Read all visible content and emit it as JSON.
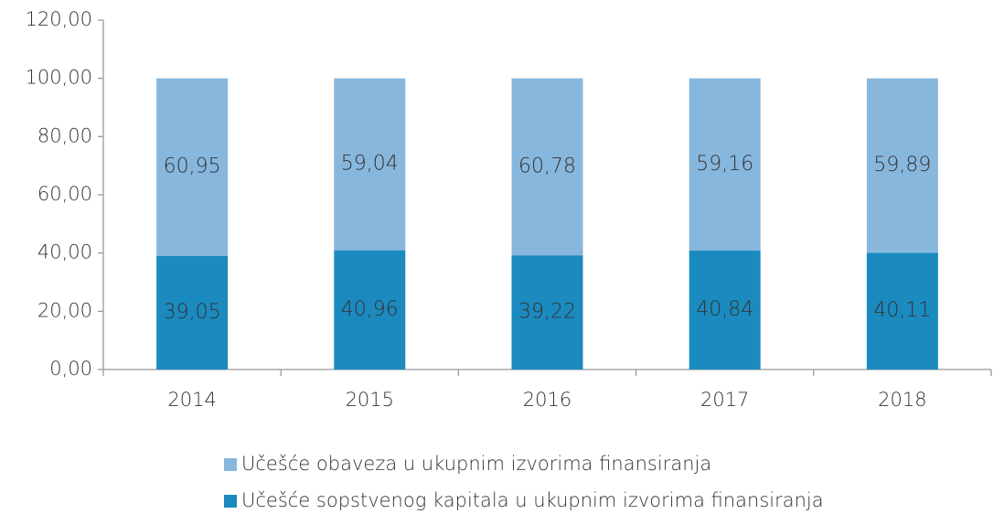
{
  "chart_data": {
    "type": "stacked_bar",
    "categories": [
      "2014",
      "2015",
      "2016",
      "2017",
      "2018"
    ],
    "series": [
      {
        "name": "Učešće sopstvenog kapitala u ukupnim izvorima finansiranja",
        "color": "#1b8abf",
        "values": [
          39.05,
          40.96,
          39.22,
          40.84,
          40.11
        ],
        "value_labels": [
          "39,05",
          "40,96",
          "39,22",
          "40,84",
          "40,11"
        ]
      },
      {
        "name": "Učešće obaveza u ukupnim izvorima finansiranja",
        "color": "#88b7dd",
        "values": [
          60.95,
          59.04,
          60.78,
          59.16,
          59.89
        ],
        "value_labels": [
          "60,95",
          "59,04",
          "60,78",
          "59,16",
          "59,89"
        ]
      }
    ],
    "ylim": [
      0,
      120
    ],
    "yticks": [
      {
        "value": 0,
        "label": "0,00"
      },
      {
        "value": 20,
        "label": "20,00"
      },
      {
        "value": 40,
        "label": "40,00"
      },
      {
        "value": 60,
        "label": "60,00"
      },
      {
        "value": 80,
        "label": "80,00"
      },
      {
        "value": 100,
        "label": "100,00"
      },
      {
        "value": 120,
        "label": "120,00"
      }
    ],
    "grid": false
  }
}
